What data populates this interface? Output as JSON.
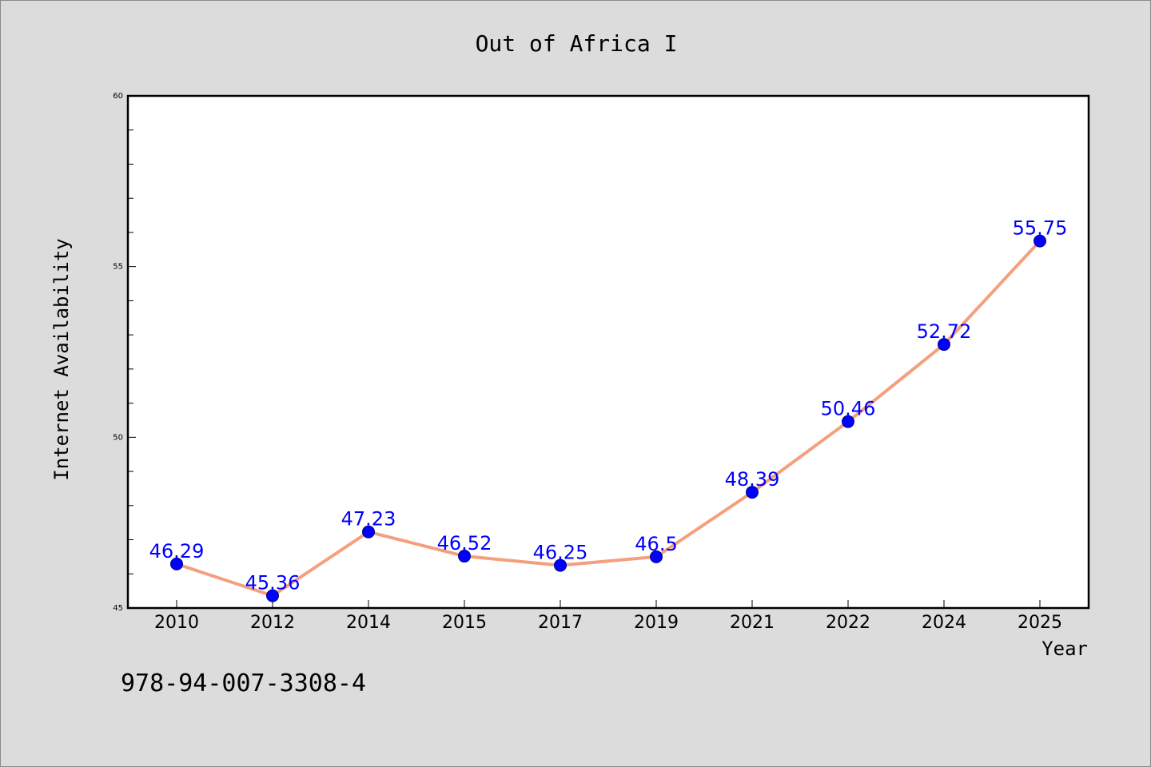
{
  "chart_data": {
    "type": "line",
    "title": "Out of Africa I",
    "xlabel": "Year",
    "ylabel": "Internet Availability",
    "categories": [
      "2010",
      "2012",
      "2014",
      "2015",
      "2017",
      "2019",
      "2021",
      "2022",
      "2024",
      "2025"
    ],
    "series": [
      {
        "values": [
          46.29,
          45.36,
          47.23,
          46.52,
          46.25,
          46.5,
          48.39,
          50.46,
          52.72,
          55.75
        ],
        "data_labels": [
          "46.29",
          "45.36",
          "47.23",
          "46.52",
          "46.25",
          "46.5",
          "48.39",
          "50.46",
          "52.72",
          "55.75"
        ],
        "line_color": "#f4a07e",
        "marker_color": "#0000ff"
      }
    ],
    "ylim": [
      45,
      60
    ],
    "yticks": [
      "45",
      "50",
      "55",
      "60"
    ],
    "legend": "none",
    "grid": false
  },
  "footer": {
    "code": "978-94-007-3308-4"
  }
}
